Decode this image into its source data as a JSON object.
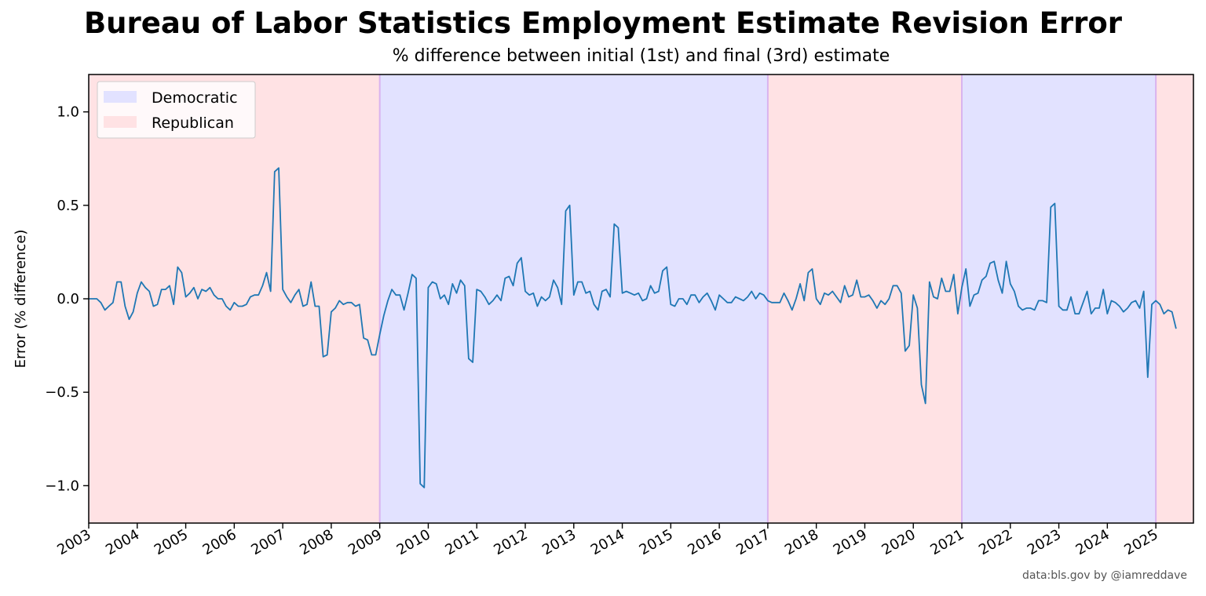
{
  "chart_data": {
    "type": "line",
    "title": "Bureau of Labor Statistics Employment Estimate Revision Error",
    "subtitle": "% difference between initial (1st) and final (3rd) estimate",
    "xlabel": "",
    "ylabel": "Error (% difference)",
    "xlim": [
      "2003-01",
      "2025-05"
    ],
    "ylim": [
      -1.2,
      1.2
    ],
    "x_ticks": [
      "2003",
      "2004",
      "2005",
      "2006",
      "2007",
      "2008",
      "2009",
      "2010",
      "2011",
      "2012",
      "2013",
      "2014",
      "2015",
      "2016",
      "2017",
      "2018",
      "2019",
      "2020",
      "2021",
      "2022",
      "2023",
      "2024",
      "2025"
    ],
    "y_ticks": [
      1.0,
      0.5,
      0.0,
      -0.5,
      -1.0
    ],
    "y_tick_labels": [
      "1.0",
      "0.5",
      "0.0",
      "−0.5",
      "−1.0"
    ],
    "grid": false,
    "legend_position": "top-left",
    "legend": [
      {
        "label": "Democratic",
        "color": "#e2e2ff"
      },
      {
        "label": "Republican",
        "color": "#ffe2e4"
      }
    ],
    "shading": [
      {
        "party": "Republican",
        "start": "2003-01",
        "end": "2009-01"
      },
      {
        "party": "Democratic",
        "start": "2009-01",
        "end": "2017-01"
      },
      {
        "party": "Republican",
        "start": "2017-01",
        "end": "2021-01"
      },
      {
        "party": "Democratic",
        "start": "2021-01",
        "end": "2025-01"
      },
      {
        "party": "Republican",
        "start": "2025-01",
        "end": "2025-05"
      }
    ],
    "series": [
      {
        "color": "#1f77b4",
        "points": [
          [
            "2003-01",
            0.0
          ],
          [
            "2003-03",
            0.0
          ],
          [
            "2003-04",
            -0.02
          ],
          [
            "2003-05",
            -0.06
          ],
          [
            "2003-06",
            -0.04
          ],
          [
            "2003-07",
            -0.02
          ],
          [
            "2003-08",
            0.09
          ],
          [
            "2003-09",
            0.09
          ],
          [
            "2003-10",
            -0.04
          ],
          [
            "2003-11",
            -0.11
          ],
          [
            "2003-12",
            -0.07
          ],
          [
            "2004-01",
            0.03
          ],
          [
            "2004-02",
            0.09
          ],
          [
            "2004-03",
            0.06
          ],
          [
            "2004-04",
            0.04
          ],
          [
            "2004-05",
            -0.04
          ],
          [
            "2004-06",
            -0.03
          ],
          [
            "2004-07",
            0.05
          ],
          [
            "2004-08",
            0.05
          ],
          [
            "2004-09",
            0.07
          ],
          [
            "2004-10",
            -0.03
          ],
          [
            "2004-11",
            0.17
          ],
          [
            "2004-12",
            0.14
          ],
          [
            "2005-01",
            0.01
          ],
          [
            "2005-02",
            0.03
          ],
          [
            "2005-03",
            0.06
          ],
          [
            "2005-04",
            0.0
          ],
          [
            "2005-05",
            0.05
          ],
          [
            "2005-06",
            0.04
          ],
          [
            "2005-07",
            0.06
          ],
          [
            "2005-08",
            0.02
          ],
          [
            "2005-09",
            0.0
          ],
          [
            "2005-10",
            0.0
          ],
          [
            "2005-11",
            -0.04
          ],
          [
            "2005-12",
            -0.06
          ],
          [
            "2006-01",
            -0.02
          ],
          [
            "2006-02",
            -0.04
          ],
          [
            "2006-03",
            -0.04
          ],
          [
            "2006-04",
            -0.03
          ],
          [
            "2006-05",
            0.01
          ],
          [
            "2006-06",
            0.02
          ],
          [
            "2006-07",
            0.02
          ],
          [
            "2006-08",
            0.07
          ],
          [
            "2006-09",
            0.14
          ],
          [
            "2006-10",
            0.04
          ],
          [
            "2006-11",
            0.68
          ],
          [
            "2006-12",
            0.7
          ],
          [
            "2007-01",
            0.05
          ],
          [
            "2007-02",
            0.01
          ],
          [
            "2007-03",
            -0.02
          ],
          [
            "2007-04",
            0.02
          ],
          [
            "2007-05",
            0.05
          ],
          [
            "2007-06",
            -0.04
          ],
          [
            "2007-07",
            -0.03
          ],
          [
            "2007-08",
            0.09
          ],
          [
            "2007-09",
            -0.04
          ],
          [
            "2007-10",
            -0.04
          ],
          [
            "2007-11",
            -0.31
          ],
          [
            "2007-12",
            -0.3
          ],
          [
            "2008-01",
            -0.07
          ],
          [
            "2008-02",
            -0.05
          ],
          [
            "2008-03",
            -0.01
          ],
          [
            "2008-04",
            -0.03
          ],
          [
            "2008-05",
            -0.02
          ],
          [
            "2008-06",
            -0.02
          ],
          [
            "2008-07",
            -0.04
          ],
          [
            "2008-08",
            -0.03
          ],
          [
            "2008-09",
            -0.21
          ],
          [
            "2008-10",
            -0.22
          ],
          [
            "2008-11",
            -0.3
          ],
          [
            "2008-12",
            -0.3
          ],
          [
            "2009-01",
            -0.19
          ],
          [
            "2009-02",
            -0.09
          ],
          [
            "2009-03",
            -0.01
          ],
          [
            "2009-04",
            0.05
          ],
          [
            "2009-05",
            0.02
          ],
          [
            "2009-06",
            0.02
          ],
          [
            "2009-07",
            -0.06
          ],
          [
            "2009-08",
            0.03
          ],
          [
            "2009-09",
            0.13
          ],
          [
            "2009-10",
            0.11
          ],
          [
            "2009-11",
            -0.99
          ],
          [
            "2009-12",
            -1.01
          ],
          [
            "2010-01",
            0.06
          ],
          [
            "2010-02",
            0.09
          ],
          [
            "2010-03",
            0.08
          ],
          [
            "2010-04",
            0.0
          ],
          [
            "2010-05",
            0.02
          ],
          [
            "2010-06",
            -0.03
          ],
          [
            "2010-07",
            0.08
          ],
          [
            "2010-08",
            0.03
          ],
          [
            "2010-09",
            0.1
          ],
          [
            "2010-10",
            0.07
          ],
          [
            "2010-11",
            -0.32
          ],
          [
            "2010-12",
            -0.34
          ],
          [
            "2011-01",
            0.05
          ],
          [
            "2011-02",
            0.04
          ],
          [
            "2011-03",
            0.01
          ],
          [
            "2011-04",
            -0.03
          ],
          [
            "2011-05",
            -0.01
          ],
          [
            "2011-06",
            0.02
          ],
          [
            "2011-07",
            -0.01
          ],
          [
            "2011-08",
            0.11
          ],
          [
            "2011-09",
            0.12
          ],
          [
            "2011-10",
            0.07
          ],
          [
            "2011-11",
            0.19
          ],
          [
            "2011-12",
            0.22
          ],
          [
            "2012-01",
            0.04
          ],
          [
            "2012-02",
            0.02
          ],
          [
            "2012-03",
            0.03
          ],
          [
            "2012-04",
            -0.04
          ],
          [
            "2012-05",
            0.01
          ],
          [
            "2012-06",
            -0.01
          ],
          [
            "2012-07",
            0.01
          ],
          [
            "2012-08",
            0.1
          ],
          [
            "2012-09",
            0.06
          ],
          [
            "2012-10",
            -0.03
          ],
          [
            "2012-11",
            0.47
          ],
          [
            "2012-12",
            0.5
          ],
          [
            "2013-01",
            0.02
          ],
          [
            "2013-02",
            0.09
          ],
          [
            "2013-03",
            0.09
          ],
          [
            "2013-04",
            0.03
          ],
          [
            "2013-05",
            0.04
          ],
          [
            "2013-06",
            -0.03
          ],
          [
            "2013-07",
            -0.06
          ],
          [
            "2013-08",
            0.04
          ],
          [
            "2013-09",
            0.05
          ],
          [
            "2013-10",
            0.01
          ],
          [
            "2013-11",
            0.4
          ],
          [
            "2013-12",
            0.38
          ],
          [
            "2014-01",
            0.03
          ],
          [
            "2014-02",
            0.04
          ],
          [
            "2014-03",
            0.03
          ],
          [
            "2014-04",
            0.02
          ],
          [
            "2014-05",
            0.03
          ],
          [
            "2014-06",
            -0.01
          ],
          [
            "2014-07",
            0.0
          ],
          [
            "2014-08",
            0.07
          ],
          [
            "2014-09",
            0.03
          ],
          [
            "2014-10",
            0.04
          ],
          [
            "2014-11",
            0.15
          ],
          [
            "2014-12",
            0.17
          ],
          [
            "2015-01",
            -0.03
          ],
          [
            "2015-02",
            -0.04
          ],
          [
            "2015-03",
            0.0
          ],
          [
            "2015-04",
            0.0
          ],
          [
            "2015-05",
            -0.03
          ],
          [
            "2015-06",
            0.02
          ],
          [
            "2015-07",
            0.02
          ],
          [
            "2015-08",
            -0.02
          ],
          [
            "2015-09",
            0.01
          ],
          [
            "2015-10",
            0.03
          ],
          [
            "2015-11",
            -0.01
          ],
          [
            "2015-12",
            -0.06
          ],
          [
            "2016-01",
            0.02
          ],
          [
            "2016-02",
            0.0
          ],
          [
            "2016-03",
            -0.02
          ],
          [
            "2016-04",
            -0.02
          ],
          [
            "2016-05",
            0.01
          ],
          [
            "2016-06",
            0.0
          ],
          [
            "2016-07",
            -0.01
          ],
          [
            "2016-08",
            0.01
          ],
          [
            "2016-09",
            0.04
          ],
          [
            "2016-10",
            0.0
          ],
          [
            "2016-11",
            0.03
          ],
          [
            "2016-12",
            0.02
          ],
          [
            "2017-01",
            -0.01
          ],
          [
            "2017-02",
            -0.02
          ],
          [
            "2017-03",
            -0.02
          ],
          [
            "2017-04",
            -0.02
          ],
          [
            "2017-05",
            0.03
          ],
          [
            "2017-06",
            -0.01
          ],
          [
            "2017-07",
            -0.06
          ],
          [
            "2017-08",
            0.0
          ],
          [
            "2017-09",
            0.08
          ],
          [
            "2017-10",
            -0.01
          ],
          [
            "2017-11",
            0.14
          ],
          [
            "2017-12",
            0.16
          ],
          [
            "2018-01",
            0.0
          ],
          [
            "2018-02",
            -0.03
          ],
          [
            "2018-03",
            0.03
          ],
          [
            "2018-04",
            0.02
          ],
          [
            "2018-05",
            0.04
          ],
          [
            "2018-06",
            0.01
          ],
          [
            "2018-07",
            -0.02
          ],
          [
            "2018-08",
            0.07
          ],
          [
            "2018-09",
            0.01
          ],
          [
            "2018-10",
            0.02
          ],
          [
            "2018-11",
            0.1
          ],
          [
            "2018-12",
            0.01
          ],
          [
            "2019-01",
            0.01
          ],
          [
            "2019-02",
            0.02
          ],
          [
            "2019-03",
            -0.01
          ],
          [
            "2019-04",
            -0.05
          ],
          [
            "2019-05",
            -0.01
          ],
          [
            "2019-06",
            -0.03
          ],
          [
            "2019-07",
            0.0
          ],
          [
            "2019-08",
            0.07
          ],
          [
            "2019-09",
            0.07
          ],
          [
            "2019-10",
            0.03
          ],
          [
            "2019-11",
            -0.28
          ],
          [
            "2019-12",
            -0.25
          ],
          [
            "2020-01",
            0.02
          ],
          [
            "2020-02",
            -0.05
          ],
          [
            "2020-03",
            -0.46
          ],
          [
            "2020-04",
            -0.56
          ],
          [
            "2020-05",
            0.09
          ],
          [
            "2020-06",
            0.01
          ],
          [
            "2020-07",
            0.0
          ],
          [
            "2020-08",
            0.11
          ],
          [
            "2020-09",
            0.04
          ],
          [
            "2020-10",
            0.04
          ],
          [
            "2020-11",
            0.13
          ],
          [
            "2020-12",
            -0.08
          ],
          [
            "2021-01",
            0.06
          ],
          [
            "2021-02",
            0.16
          ],
          [
            "2021-03",
            -0.04
          ],
          [
            "2021-04",
            0.02
          ],
          [
            "2021-05",
            0.03
          ],
          [
            "2021-06",
            0.1
          ],
          [
            "2021-07",
            0.12
          ],
          [
            "2021-08",
            0.19
          ],
          [
            "2021-09",
            0.2
          ],
          [
            "2021-10",
            0.1
          ],
          [
            "2021-11",
            0.03
          ],
          [
            "2021-12",
            0.2
          ],
          [
            "2022-01",
            0.08
          ],
          [
            "2022-02",
            0.04
          ],
          [
            "2022-03",
            -0.04
          ],
          [
            "2022-04",
            -0.06
          ],
          [
            "2022-05",
            -0.05
          ],
          [
            "2022-06",
            -0.05
          ],
          [
            "2022-07",
            -0.06
          ],
          [
            "2022-08",
            -0.01
          ],
          [
            "2022-09",
            -0.01
          ],
          [
            "2022-10",
            -0.02
          ],
          [
            "2022-11",
            0.49
          ],
          [
            "2022-12",
            0.51
          ],
          [
            "2023-01",
            -0.04
          ],
          [
            "2023-02",
            -0.06
          ],
          [
            "2023-03",
            -0.06
          ],
          [
            "2023-04",
            0.01
          ],
          [
            "2023-05",
            -0.08
          ],
          [
            "2023-06",
            -0.08
          ],
          [
            "2023-07",
            -0.02
          ],
          [
            "2023-08",
            0.04
          ],
          [
            "2023-09",
            -0.08
          ],
          [
            "2023-10",
            -0.05
          ],
          [
            "2023-11",
            -0.05
          ],
          [
            "2023-12",
            0.05
          ],
          [
            "2024-01",
            -0.08
          ],
          [
            "2024-02",
            -0.01
          ],
          [
            "2024-03",
            -0.02
          ],
          [
            "2024-04",
            -0.04
          ],
          [
            "2024-05",
            -0.07
          ],
          [
            "2024-06",
            -0.05
          ],
          [
            "2024-07",
            -0.02
          ],
          [
            "2024-08",
            -0.01
          ],
          [
            "2024-09",
            -0.05
          ],
          [
            "2024-10",
            0.04
          ],
          [
            "2024-11",
            -0.42
          ],
          [
            "2024-12",
            -0.03
          ],
          [
            "2025-01",
            -0.01
          ],
          [
            "2025-02",
            -0.03
          ],
          [
            "2025-03",
            -0.08
          ],
          [
            "2025-04",
            -0.06
          ],
          [
            "2025-05",
            -0.07
          ],
          [
            "2025-06",
            -0.16
          ]
        ]
      }
    ]
  },
  "credit": "data:bls.gov by @iamreddave"
}
